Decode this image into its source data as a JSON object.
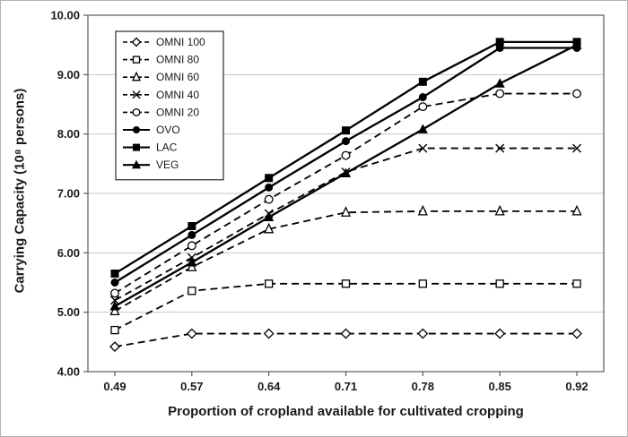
{
  "figure": {
    "y_axis_label": "Carrying Capacity (10⁸ persons)",
    "x_axis_label": "Proportion of cropland available for cultivated cropping"
  },
  "chart_data": {
    "type": "line",
    "x": [
      0.49,
      0.57,
      0.64,
      0.71,
      0.78,
      0.85,
      0.92
    ],
    "x_tick_labels": [
      "0.49",
      "0.57",
      "0.64",
      "0.71",
      "0.78",
      "0.85",
      "0.92"
    ],
    "ylim": [
      4.0,
      10.0
    ],
    "y_ticks": [
      4,
      5,
      6,
      7,
      8,
      9,
      10
    ],
    "y_tick_labels": [
      "4.00",
      "5.00",
      "6.00",
      "7.00",
      "8.00",
      "9.00",
      "10.00"
    ],
    "grid": "horizontal-major",
    "legend_position": "top-left-inside",
    "line_color": "#000000",
    "grid_color": "#c6c6c6",
    "series": [
      {
        "name": "OMNI 100",
        "line": "dashed",
        "marker": "open-diamond",
        "values": [
          4.42,
          4.64,
          4.64,
          4.64,
          4.64,
          4.64,
          4.64
        ]
      },
      {
        "name": "OMNI 80",
        "line": "dashed",
        "marker": "open-square",
        "values": [
          4.7,
          5.36,
          5.48,
          5.48,
          5.48,
          5.48,
          5.48
        ]
      },
      {
        "name": "OMNI 60",
        "line": "dashed",
        "marker": "open-triangle",
        "values": [
          5.02,
          5.76,
          6.4,
          6.68,
          6.7,
          6.7,
          6.7
        ]
      },
      {
        "name": "OMNI 40",
        "line": "dashed",
        "marker": "x-cross",
        "values": [
          5.2,
          5.92,
          6.66,
          7.36,
          7.76,
          7.76,
          7.76
        ]
      },
      {
        "name": "OMNI 20",
        "line": "dashed",
        "marker": "open-circle",
        "values": [
          5.32,
          6.12,
          6.9,
          7.64,
          8.46,
          8.68,
          8.68
        ]
      },
      {
        "name": "OVO",
        "line": "solid",
        "marker": "filled-circle",
        "values": [
          5.5,
          6.3,
          7.1,
          7.88,
          8.62,
          9.45,
          9.45
        ]
      },
      {
        "name": "LAC",
        "line": "solid",
        "marker": "filled-square",
        "values": [
          5.65,
          6.45,
          7.26,
          8.06,
          8.88,
          9.55,
          9.55
        ]
      },
      {
        "name": "VEG",
        "line": "solid",
        "marker": "filled-triangle",
        "values": [
          5.1,
          5.84,
          6.6,
          7.34,
          8.08,
          8.85,
          9.5
        ]
      }
    ]
  }
}
